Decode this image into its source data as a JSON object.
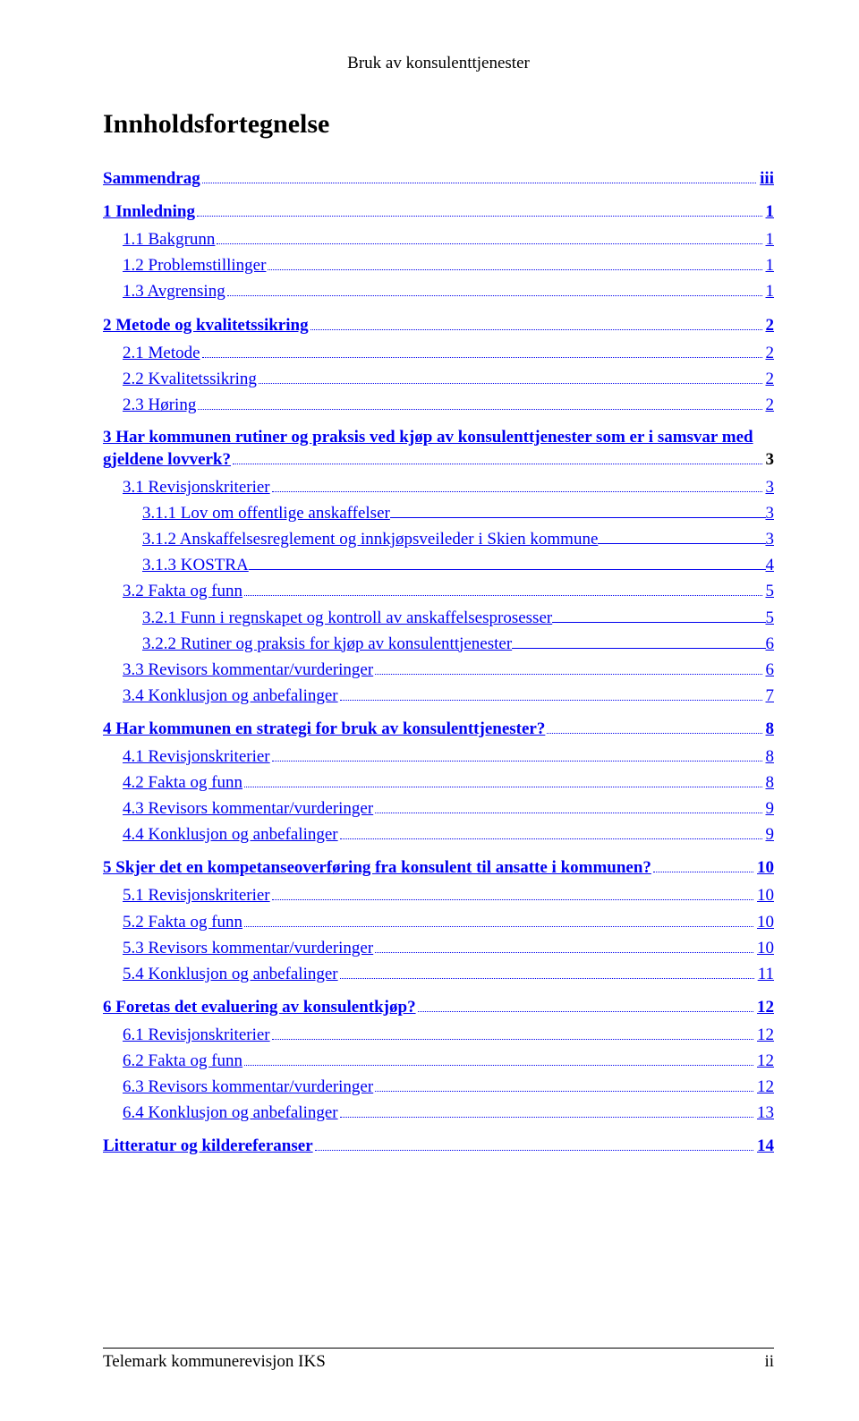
{
  "header": "Bruk av konsulenttjenester",
  "title": "Innholdsfortegnelse",
  "entries": [
    {
      "type": "dotted",
      "level": 0,
      "label": " Sammendrag ",
      "page": "iii"
    },
    {
      "type": "dotted",
      "level": 0,
      "label": "1 Innledning",
      "page": "1"
    },
    {
      "type": "dotted",
      "level": 1,
      "label": "1.1 Bakgrunn",
      "page": "1"
    },
    {
      "type": "dotted",
      "level": 1,
      "label": "1.2 Problemstillinger",
      "page": "1"
    },
    {
      "type": "dotted",
      "level": 1,
      "label": "1.3 Avgrensing",
      "page": "1"
    },
    {
      "type": "dotted",
      "level": 0,
      "label": "2 Metode og kvalitetssikring",
      "page": "2"
    },
    {
      "type": "dotted",
      "level": 1,
      "label": "2.1 Metode",
      "page": "2"
    },
    {
      "type": "dotted",
      "level": 1,
      "label": "2.2 Kvalitetssikring",
      "page": "2"
    },
    {
      "type": "dotted",
      "level": 1,
      "label": "2.3 Høring",
      "page": "2"
    },
    {
      "type": "dotted",
      "level": 0,
      "label": "3 Har kommunen rutiner og praksis ved kjøp av konsulenttjenester som er i samsvar med gjeldene lovverk?",
      "page": "3",
      "wrap": true
    },
    {
      "type": "dotted",
      "level": 1,
      "label": "3.1 Revisjonskriterier",
      "page": "3"
    },
    {
      "type": "solid",
      "level": 2,
      "label": "3.1.1 Lov om offentlige anskaffelser",
      "page": "3"
    },
    {
      "type": "solid",
      "level": 2,
      "label": "3.1.2 Anskaffelsesreglement og innkjøpsveileder i Skien kommune",
      "page": "3"
    },
    {
      "type": "solid",
      "level": 2,
      "label": "3.1.3 KOSTRA",
      "page": "4"
    },
    {
      "type": "dotted",
      "level": 1,
      "label": "3.2 Fakta og funn",
      "page": "5"
    },
    {
      "type": "solid",
      "level": 2,
      "label": "3.2.1 Funn i regnskapet og kontroll av anskaffelsesprosesser",
      "page": "5"
    },
    {
      "type": "solid",
      "level": 2,
      "label": "3.2.2 Rutiner og praksis for kjøp av konsulenttjenester",
      "page": "6"
    },
    {
      "type": "dotted",
      "level": 1,
      "label": "3.3 Revisors kommentar/vurderinger",
      "page": "6"
    },
    {
      "type": "dotted",
      "level": 1,
      "label": "3.4 Konklusjon og anbefalinger",
      "page": "7"
    },
    {
      "type": "dotted",
      "level": 0,
      "label": "4 Har kommunen en strategi for bruk av konsulenttjenester?",
      "page": "8"
    },
    {
      "type": "dotted",
      "level": 1,
      "label": "4.1 Revisjonskriterier",
      "page": "8"
    },
    {
      "type": "dotted",
      "level": 1,
      "label": "4.2 Fakta og funn",
      "page": "8"
    },
    {
      "type": "dotted",
      "level": 1,
      "label": "4.3 Revisors kommentar/vurderinger",
      "page": "9"
    },
    {
      "type": "dotted",
      "level": 1,
      "label": "4.4 Konklusjon og anbefalinger",
      "page": "9"
    },
    {
      "type": "dotted",
      "level": 0,
      "label": "5 Skjer det en kompetanseoverføring fra konsulent til ansatte i kommunen?",
      "page": "10"
    },
    {
      "type": "dotted",
      "level": 1,
      "label": "5.1 Revisjonskriterier",
      "page": "10"
    },
    {
      "type": "dotted",
      "level": 1,
      "label": "5.2 Fakta og funn",
      "page": "10"
    },
    {
      "type": "dotted",
      "level": 1,
      "label": "5.3 Revisors kommentar/vurderinger",
      "page": "10"
    },
    {
      "type": "dotted",
      "level": 1,
      "label": "5.4 Konklusjon og anbefalinger",
      "page": "11"
    },
    {
      "type": "dotted",
      "level": 0,
      "label": "6 Foretas det evaluering av konsulentkjøp?",
      "page": "12"
    },
    {
      "type": "dotted",
      "level": 1,
      "label": "6.1 Revisjonskriterier",
      "page": "12"
    },
    {
      "type": "dotted",
      "level": 1,
      "label": "6.2 Fakta og funn",
      "page": "12"
    },
    {
      "type": "dotted",
      "level": 1,
      "label": "6.3 Revisors kommentar/vurderinger",
      "page": "12"
    },
    {
      "type": "dotted",
      "level": 1,
      "label": "6.4 Konklusjon og anbefalinger",
      "page": "13"
    },
    {
      "type": "dotted",
      "level": 0,
      "label": " Litteratur og kildereferanser",
      "page": "14"
    }
  ],
  "footer": {
    "left": "Telemark kommunerevisjon IKS",
    "right": "ii"
  },
  "colors": {
    "link": "#0000ee",
    "text": "#000000",
    "background": "#ffffff"
  },
  "fonts": {
    "family": "Times New Roman",
    "body_size_pt": 14,
    "title_size_pt": 22
  }
}
